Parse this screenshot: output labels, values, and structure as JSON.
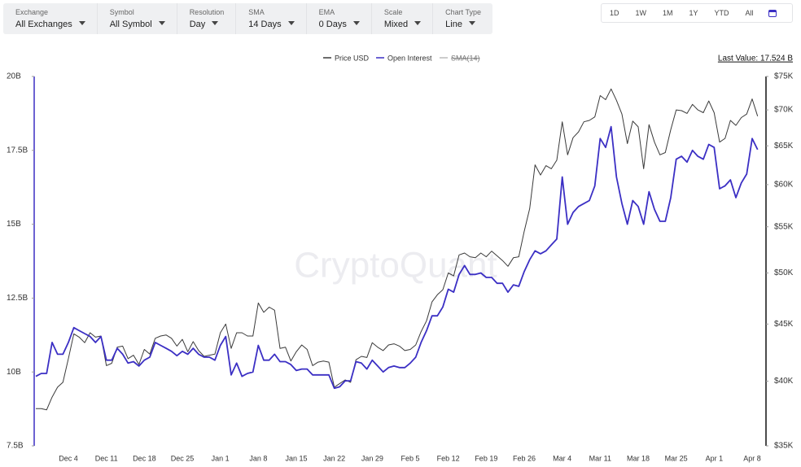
{
  "toolbar": {
    "dropdowns": [
      {
        "label": "Exchange",
        "value": "All Exchanges"
      },
      {
        "label": "Symbol",
        "value": "All Symbol"
      },
      {
        "label": "Resolution",
        "value": "Day"
      },
      {
        "label": "SMA",
        "value": "14 Days"
      },
      {
        "label": "EMA",
        "value": "0 Days"
      },
      {
        "label": "Scale",
        "value": "Mixed"
      },
      {
        "label": "Chart Type",
        "value": "Line"
      }
    ],
    "ranges": [
      "1D",
      "1W",
      "1M",
      "1Y",
      "YTD",
      "All"
    ]
  },
  "chart_data": {
    "type": "line",
    "watermark": "CryptoQuant",
    "last_value_label": "Last Value: 17.524 B",
    "categories": [
      null,
      null,
      null,
      null,
      null,
      null,
      "Dec 4",
      null,
      null,
      null,
      null,
      null,
      null,
      "Dec 11",
      null,
      null,
      null,
      null,
      null,
      null,
      "Dec 18",
      null,
      null,
      null,
      null,
      null,
      null,
      "Dec 25",
      null,
      null,
      null,
      null,
      null,
      null,
      "Jan 1",
      null,
      null,
      null,
      null,
      null,
      null,
      "Jan 8",
      null,
      null,
      null,
      null,
      null,
      null,
      "Jan 15",
      null,
      null,
      null,
      null,
      null,
      null,
      "Jan 22",
      null,
      null,
      null,
      null,
      null,
      null,
      "Jan 29",
      null,
      null,
      null,
      null,
      null,
      null,
      "Feb 5",
      null,
      null,
      null,
      null,
      null,
      null,
      "Feb 12",
      null,
      null,
      null,
      null,
      null,
      null,
      "Feb 19",
      null,
      null,
      null,
      null,
      null,
      null,
      "Feb 26",
      null,
      null,
      null,
      null,
      null,
      null,
      "Mar 4",
      null,
      null,
      null,
      null,
      null,
      null,
      "Mar 11",
      null,
      null,
      null,
      null,
      null,
      null,
      "Mar 18",
      null,
      null,
      null,
      null,
      null,
      null,
      "Mar 25",
      null,
      null,
      null,
      null,
      null,
      null,
      "Apr 1",
      null,
      null,
      null,
      null,
      null,
      null,
      "Apr 8",
      null
    ],
    "ylim": [
      7.5,
      20
    ],
    "yticks": [
      {
        "value": 7.5,
        "label": "7.5B"
      },
      {
        "value": 10,
        "label": "10B"
      },
      {
        "value": 12.5,
        "label": "12.5B"
      },
      {
        "value": 15,
        "label": "15B"
      },
      {
        "value": 17.5,
        "label": "17.5B"
      },
      {
        "value": 20,
        "label": "20B"
      }
    ],
    "y2lim": [
      35000,
      75000
    ],
    "y2log": true,
    "y2ticks": [
      {
        "value": 35000,
        "label": "$35K"
      },
      {
        "value": 40000,
        "label": "$40K"
      },
      {
        "value": 45000,
        "label": "$45K"
      },
      {
        "value": 50000,
        "label": "$50K"
      },
      {
        "value": 55000,
        "label": "$55K"
      },
      {
        "value": 60000,
        "label": "$60K"
      },
      {
        "value": 65000,
        "label": "$65K"
      },
      {
        "value": 70000,
        "label": "$70K"
      },
      {
        "value": 75000,
        "label": "$75K"
      }
    ],
    "series": [
      {
        "name": "Price USD",
        "color": "#3a3a3a",
        "axis": "y2",
        "values": [
          37800,
          37800,
          37700,
          38700,
          39500,
          39900,
          41900,
          44100,
          43800,
          43300,
          44200,
          43800,
          43900,
          41300,
          41500,
          42900,
          43000,
          41900,
          42200,
          41400,
          42700,
          42300,
          43700,
          43900,
          44000,
          43700,
          43000,
          43600,
          42500,
          43400,
          42600,
          42100,
          42200,
          42300,
          44200,
          45000,
          42800,
          44200,
          44200,
          43900,
          43900,
          47000,
          46100,
          46600,
          46300,
          42800,
          42900,
          41700,
          42500,
          43100,
          42700,
          41300,
          41600,
          41700,
          41600,
          39500,
          39800,
          40100,
          39900,
          41800,
          42100,
          42000,
          43300,
          42900,
          42600,
          43100,
          43200,
          43000,
          42600,
          42700,
          43100,
          44300,
          45300,
          47100,
          47800,
          48300,
          50000,
          49700,
          51900,
          52100,
          51700,
          51600,
          52100,
          51700,
          52300,
          51800,
          51300,
          50700,
          51600,
          51700,
          54500,
          57100,
          62500,
          61200,
          62400,
          62000,
          63100,
          68300,
          63800,
          66100,
          66900,
          68300,
          68500,
          69000,
          72100,
          71500,
          73100,
          71400,
          69400,
          65300,
          68400,
          67600,
          62000,
          67900,
          65500,
          63800,
          64100,
          67200,
          70000,
          69900,
          69500,
          70800,
          70000,
          69600,
          71300,
          69600,
          65500,
          66000,
          68500,
          67800,
          68900,
          69400,
          71600,
          69100
        ]
      },
      {
        "name": "Open Interest",
        "color": "#3b2fc4",
        "axis": "y",
        "values": [
          9.85,
          9.95,
          9.95,
          11.0,
          10.6,
          10.6,
          11.0,
          11.5,
          11.4,
          11.3,
          11.2,
          11.0,
          11.2,
          10.4,
          10.4,
          10.8,
          10.6,
          10.3,
          10.35,
          10.2,
          10.4,
          10.5,
          11.0,
          10.9,
          10.8,
          10.7,
          10.55,
          10.7,
          10.6,
          10.8,
          10.6,
          10.5,
          10.5,
          10.4,
          10.9,
          11.2,
          9.9,
          10.3,
          9.85,
          9.95,
          10.0,
          10.9,
          10.4,
          10.4,
          10.6,
          10.35,
          10.35,
          10.25,
          10.05,
          10.1,
          10.1,
          9.9,
          9.9,
          9.9,
          9.9,
          9.45,
          9.5,
          9.7,
          9.7,
          10.35,
          10.3,
          10.1,
          10.4,
          10.2,
          10.0,
          10.15,
          10.2,
          10.15,
          10.15,
          10.3,
          10.5,
          11.0,
          11.4,
          11.9,
          11.9,
          12.2,
          12.8,
          12.7,
          13.3,
          13.6,
          13.3,
          13.3,
          13.35,
          13.2,
          13.2,
          13.0,
          13.0,
          12.7,
          12.95,
          12.9,
          13.4,
          13.8,
          14.1,
          14.0,
          14.1,
          14.3,
          14.5,
          16.6,
          15.0,
          15.4,
          15.6,
          15.7,
          15.8,
          16.3,
          17.9,
          17.6,
          18.3,
          16.6,
          15.7,
          15.0,
          15.8,
          15.6,
          15.0,
          16.1,
          15.5,
          15.1,
          15.1,
          15.9,
          17.2,
          17.3,
          17.1,
          17.5,
          17.3,
          17.2,
          17.7,
          17.6,
          16.2,
          16.3,
          16.5,
          15.9,
          16.4,
          16.7,
          17.9,
          17.524
        ]
      }
    ],
    "hidden_series": [
      {
        "name": "SMA(14)",
        "color": "#bbbbbb"
      }
    ]
  }
}
